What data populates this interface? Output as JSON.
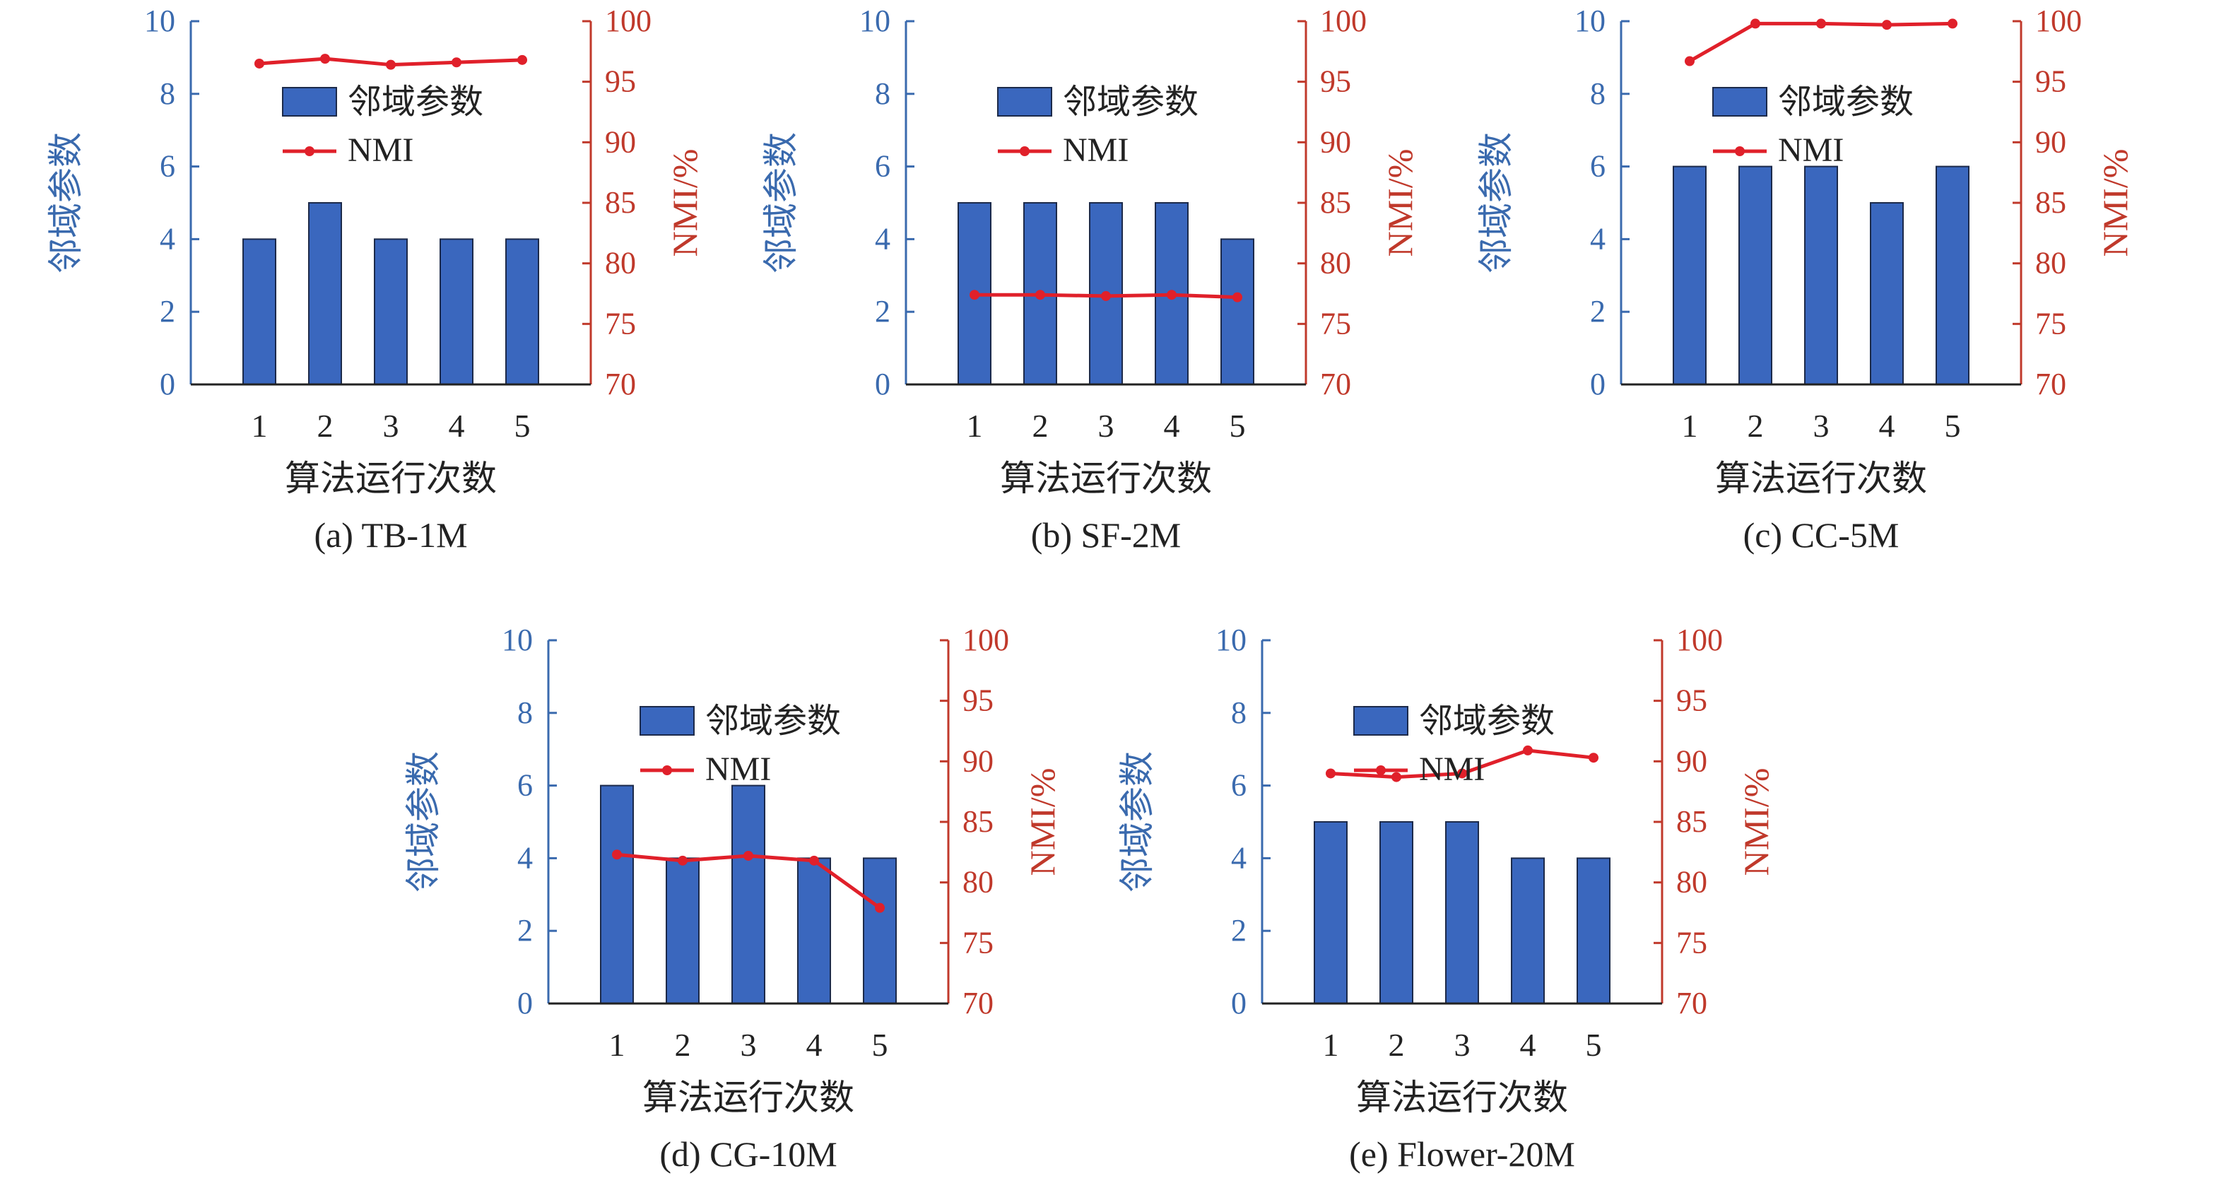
{
  "colors": {
    "bar": "#3a67be",
    "bar_edge": "#1c2a4a",
    "line": "#e0202a",
    "left_axis": "#3a6aae",
    "right_axis": "#c0392b",
    "text": "#222222"
  },
  "chart_data": [
    {
      "type": "bar+line",
      "caption": "(a) TB-1M",
      "xlabel": "算法运行次数",
      "ylabel_left": "邻域参数",
      "ylabel_right": "NMI/%",
      "categories": [
        "1",
        "2",
        "3",
        "4",
        "5"
      ],
      "ylim_left": [
        0,
        10
      ],
      "yticks_left": [
        "0",
        "2",
        "4",
        "6",
        "8",
        "10"
      ],
      "ylim_right": [
        70,
        100
      ],
      "yticks_right": [
        "70",
        "75",
        "80",
        "85",
        "90",
        "95",
        "100"
      ],
      "legend": {
        "bar": "邻域参数",
        "line": "NMI"
      },
      "series": [
        {
          "name": "邻域参数",
          "type": "bar",
          "axis": "left",
          "values": [
            4,
            5,
            4,
            4,
            4
          ]
        },
        {
          "name": "NMI",
          "type": "line",
          "axis": "right",
          "values": [
            96.5,
            96.9,
            96.4,
            96.6,
            96.8
          ]
        }
      ]
    },
    {
      "type": "bar+line",
      "caption": "(b) SF-2M",
      "xlabel": "算法运行次数",
      "ylabel_left": "邻域参数",
      "ylabel_right": "NMI/%",
      "categories": [
        "1",
        "2",
        "3",
        "4",
        "5"
      ],
      "ylim_left": [
        0,
        10
      ],
      "yticks_left": [
        "0",
        "2",
        "4",
        "6",
        "8",
        "10"
      ],
      "ylim_right": [
        70,
        100
      ],
      "yticks_right": [
        "70",
        "75",
        "80",
        "85",
        "90",
        "95",
        "100"
      ],
      "legend": {
        "bar": "邻域参数",
        "line": "NMI"
      },
      "series": [
        {
          "name": "邻域参数",
          "type": "bar",
          "axis": "left",
          "values": [
            5,
            5,
            5,
            5,
            4
          ]
        },
        {
          "name": "NMI",
          "type": "line",
          "axis": "right",
          "values": [
            77.4,
            77.4,
            77.3,
            77.4,
            77.2
          ]
        }
      ]
    },
    {
      "type": "bar+line",
      "caption": "(c) CC-5M",
      "xlabel": "算法运行次数",
      "ylabel_left": "邻域参数",
      "ylabel_right": "NMI/%",
      "categories": [
        "1",
        "2",
        "3",
        "4",
        "5"
      ],
      "ylim_left": [
        0,
        10
      ],
      "yticks_left": [
        "0",
        "2",
        "4",
        "6",
        "8",
        "10"
      ],
      "ylim_right": [
        70,
        100
      ],
      "yticks_right": [
        "70",
        "75",
        "80",
        "85",
        "90",
        "95",
        "100"
      ],
      "legend": {
        "bar": "邻域参数",
        "line": "NMI"
      },
      "series": [
        {
          "name": "邻域参数",
          "type": "bar",
          "axis": "left",
          "values": [
            6,
            6,
            6,
            5,
            6
          ]
        },
        {
          "name": "NMI",
          "type": "line",
          "axis": "right",
          "values": [
            96.7,
            99.8,
            99.8,
            99.7,
            99.8
          ]
        }
      ]
    },
    {
      "type": "bar+line",
      "caption": "(d) CG-10M",
      "xlabel": "算法运行次数",
      "ylabel_left": "邻域参数",
      "ylabel_right": "NMI/%",
      "categories": [
        "1",
        "2",
        "3",
        "4",
        "5"
      ],
      "ylim_left": [
        0,
        10
      ],
      "yticks_left": [
        "0",
        "2",
        "4",
        "6",
        "8",
        "10"
      ],
      "ylim_right": [
        70,
        100
      ],
      "yticks_right": [
        "70",
        "75",
        "80",
        "85",
        "90",
        "95",
        "100"
      ],
      "legend": {
        "bar": "邻域参数",
        "line": "NMI"
      },
      "series": [
        {
          "name": "邻域参数",
          "type": "bar",
          "axis": "left",
          "values": [
            6,
            4,
            6,
            4,
            4
          ]
        },
        {
          "name": "NMI",
          "type": "line",
          "axis": "right",
          "values": [
            82.3,
            81.8,
            82.2,
            81.8,
            77.9
          ]
        }
      ]
    },
    {
      "type": "bar+line",
      "caption": "(e) Flower-20M",
      "xlabel": "算法运行次数",
      "ylabel_left": "邻域参数",
      "ylabel_right": "NMI/%",
      "categories": [
        "1",
        "2",
        "3",
        "4",
        "5"
      ],
      "ylim_left": [
        0,
        10
      ],
      "yticks_left": [
        "0",
        "2",
        "4",
        "6",
        "8",
        "10"
      ],
      "ylim_right": [
        70,
        100
      ],
      "yticks_right": [
        "70",
        "75",
        "80",
        "85",
        "90",
        "95",
        "100"
      ],
      "legend": {
        "bar": "邻域参数",
        "line": "NMI"
      },
      "series": [
        {
          "name": "邻域参数",
          "type": "bar",
          "axis": "left",
          "values": [
            5,
            5,
            5,
            4,
            4
          ]
        },
        {
          "name": "NMI",
          "type": "line",
          "axis": "right",
          "values": [
            89.0,
            88.7,
            89.0,
            90.9,
            90.3
          ]
        }
      ]
    }
  ]
}
